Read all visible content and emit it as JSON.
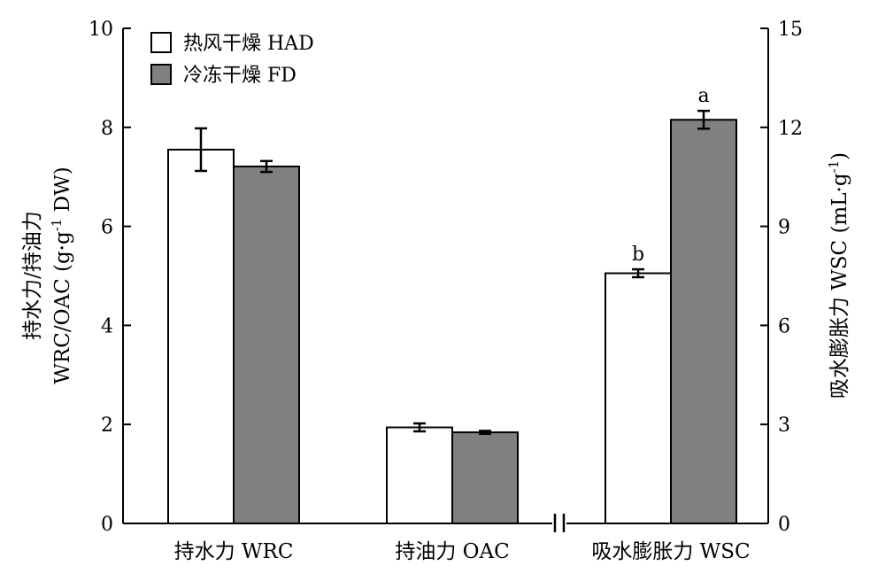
{
  "chart_data": {
    "type": "bar",
    "categories": [
      "持水力 WRC",
      "持油力 OAC",
      "吸水膨胀力 WSC"
    ],
    "series": [
      {
        "name": "热风干燥 HAD",
        "color": "#ffffff",
        "values": [
          7.55,
          1.94,
          7.58
        ],
        "errors": [
          0.43,
          0.08,
          0.12
        ],
        "labels": [
          "",
          "",
          "b"
        ]
      },
      {
        "name": "冷冻干燥 FD",
        "color": "#808080",
        "values": [
          7.21,
          1.84,
          12.23
        ],
        "errors": [
          0.11,
          0.03,
          0.27
        ],
        "labels": [
          "",
          "",
          "a"
        ]
      }
    ],
    "axis_assignment": [
      "left",
      "left",
      "right"
    ],
    "left_axis": {
      "label_line1": "持水力/持油力",
      "label_line2_prefix": "WRC/OAC (g·g",
      "label_line2_sup": "-1",
      "label_line2_suffix": " DW)",
      "ylim": [
        0,
        10
      ],
      "ticks": [
        "0",
        "2",
        "4",
        "6",
        "8",
        "10"
      ]
    },
    "right_axis": {
      "label_prefix": "吸水膨胀力 WSC (mL·g",
      "label_sup": "-1",
      "label_suffix": ")",
      "ylim": [
        0,
        15
      ],
      "ticks": [
        "0",
        "3",
        "6",
        "9",
        "12",
        "15"
      ]
    },
    "axis_break": "between categories 2 and 3",
    "legend_position": "top-left",
    "grid": false
  }
}
